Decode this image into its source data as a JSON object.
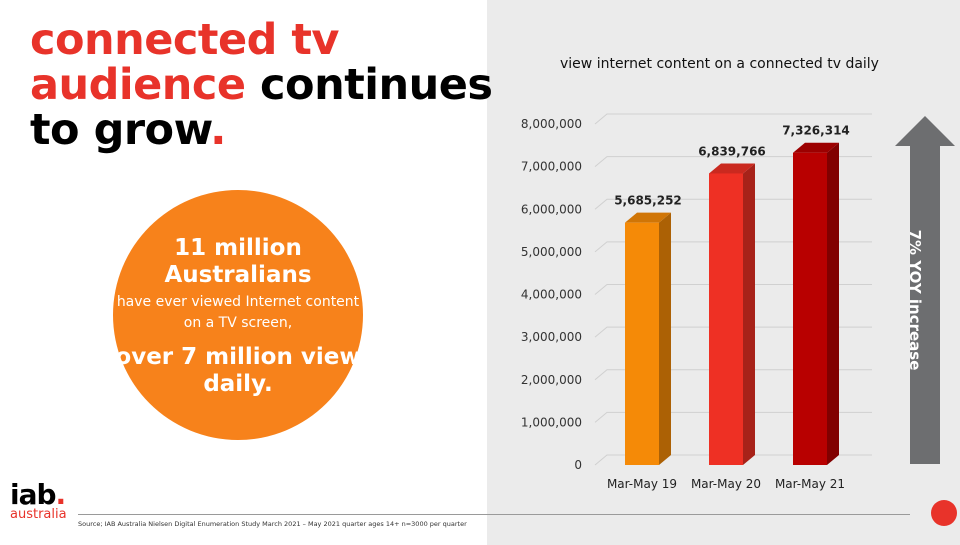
{
  "headline": {
    "part1": "connected tv",
    "part2": "audience",
    "part3": " continues",
    "part4": "to grow",
    "period": "."
  },
  "circle": {
    "line1": "11 million Australians",
    "line2": "have ever viewed Internet content on a TV screen,",
    "line3": "over 7 million view daily."
  },
  "logo": {
    "main": "iab",
    "dot": ".",
    "sub": "australia"
  },
  "source": "Source; IAB Australia Nielsen Digital Enumeration Study  March 2021 – May 2021 quarter ages 14+ n=3000 per quarter",
  "arrow_label": "7% YOY increase",
  "colors": {
    "brand_red": "#e8332a",
    "orange": "#f7821b",
    "arrow_gray": "#6d6e70"
  },
  "chart_data": {
    "type": "bar",
    "title": "view internet content on a connected tv daily",
    "categories": [
      "Mar-May 19",
      "Mar-May 20",
      "Mar-May 21"
    ],
    "values": [
      5685252,
      6839766,
      7326314
    ],
    "data_labels": [
      "5,685,252",
      "6,839,766",
      "7,326,314"
    ],
    "bar_colors": [
      "#f58a07",
      "#ee3024",
      "#b80000"
    ],
    "ylim": [
      0,
      8000000
    ],
    "yticks": [
      0,
      1000000,
      2000000,
      3000000,
      4000000,
      5000000,
      6000000,
      7000000,
      8000000
    ],
    "ytick_labels": [
      "0",
      "1,000,000",
      "2,000,000",
      "3,000,000",
      "4,000,000",
      "5,000,000",
      "6,000,000",
      "7,000,000",
      "8,000,000"
    ],
    "grid": true,
    "legend": "none",
    "style": "3d"
  }
}
